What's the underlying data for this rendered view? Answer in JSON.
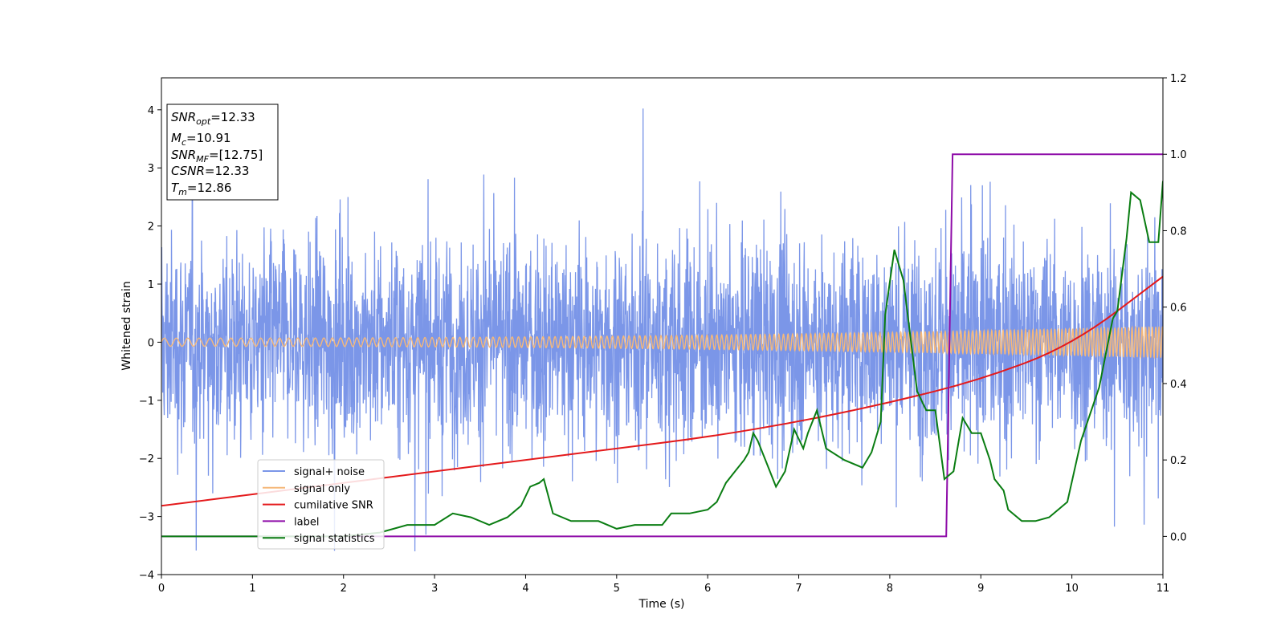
{
  "chart_data": {
    "type": "line",
    "xlabel": "Time (s)",
    "ylabel": "Whitened strain",
    "xlim": [
      0,
      11
    ],
    "ylim_left": [
      -4,
      4.55
    ],
    "ylim_right": [
      -0.1,
      1.2
    ],
    "x_ticks": [
      0,
      1,
      2,
      3,
      4,
      5,
      6,
      7,
      8,
      9,
      10,
      11
    ],
    "y_ticks_left": [
      -4,
      -3,
      -2,
      -1,
      0,
      1,
      2,
      3,
      4
    ],
    "y_ticks_right": [
      0.0,
      0.2,
      0.4,
      0.6,
      0.8,
      1.0,
      1.2
    ],
    "legend_position": "lower-left",
    "info_box": {
      "position": "top-left",
      "lines": [
        {
          "name": "SNR",
          "sub": "opt",
          "value": "=12.33"
        },
        {
          "name": "M",
          "sub": "c",
          "value": "=10.91"
        },
        {
          "name": "SNR",
          "sub": "MF",
          "value": "=[12.75]"
        },
        {
          "name": "CSNR",
          "sub": "",
          "value": "=12.33"
        },
        {
          "name": "T",
          "sub": "m",
          "value": "=12.86"
        }
      ]
    },
    "series": [
      {
        "name": "signal+ noise",
        "axis": "left",
        "color": "#7b96e8",
        "kind": "noise",
        "description_values": {
          "typical_range": [
            -2.0,
            2.2
          ],
          "max": 4.18,
          "min": -3.6
        }
      },
      {
        "name": "signal only",
        "axis": "left",
        "color": "#f5b87a",
        "kind": "chirp",
        "amplitude_start": 0.07,
        "amplitude_end": 0.27
      },
      {
        "name": "cumilative SNR",
        "axis": "right",
        "color": "#e41a1c",
        "x": [
          0,
          1,
          2,
          3,
          4,
          5,
          6,
          7,
          8,
          9,
          10,
          11
        ],
        "y": [
          0.08,
          0.11,
          0.14,
          0.17,
          0.2,
          0.23,
          0.26,
          0.3,
          0.35,
          0.41,
          0.5,
          0.68
        ]
      },
      {
        "name": "label",
        "axis": "right",
        "color": "#8e0ca8",
        "x": [
          0,
          8.62,
          8.69,
          11
        ],
        "y": [
          0,
          0,
          1,
          1
        ]
      },
      {
        "name": "signal statistics",
        "axis": "right",
        "color": "#0a7d12",
        "x": [
          0,
          0.5,
          1,
          1.5,
          2,
          2.4,
          2.7,
          2.9,
          3.0,
          3.2,
          3.4,
          3.6,
          3.8,
          3.95,
          4.05,
          4.15,
          4.2,
          4.3,
          4.5,
          4.8,
          5.0,
          5.2,
          5.5,
          5.6,
          5.8,
          6.0,
          6.1,
          6.2,
          6.3,
          6.4,
          6.45,
          6.5,
          6.55,
          6.65,
          6.75,
          6.85,
          6.95,
          7.05,
          7.1,
          7.2,
          7.3,
          7.5,
          7.7,
          7.8,
          7.9,
          7.95,
          8.05,
          8.15,
          8.3,
          8.4,
          8.45,
          8.5,
          8.6,
          8.7,
          8.8,
          8.9,
          9.0,
          9.1,
          9.15,
          9.25,
          9.3,
          9.45,
          9.6,
          9.75,
          9.85,
          9.95,
          10.1,
          10.2,
          10.3,
          10.45,
          10.5,
          10.6,
          10.65,
          10.75,
          10.85,
          10.95,
          11.0
        ],
        "y": [
          0.0,
          0.0,
          0.0,
          0.0,
          0.0,
          0.01,
          0.03,
          0.03,
          0.03,
          0.06,
          0.05,
          0.03,
          0.05,
          0.08,
          0.13,
          0.14,
          0.15,
          0.06,
          0.04,
          0.04,
          0.02,
          0.03,
          0.03,
          0.06,
          0.06,
          0.07,
          0.09,
          0.14,
          0.17,
          0.2,
          0.22,
          0.27,
          0.25,
          0.19,
          0.13,
          0.17,
          0.28,
          0.23,
          0.27,
          0.33,
          0.23,
          0.2,
          0.18,
          0.22,
          0.3,
          0.58,
          0.75,
          0.67,
          0.38,
          0.33,
          0.33,
          0.33,
          0.15,
          0.17,
          0.31,
          0.27,
          0.27,
          0.2,
          0.15,
          0.12,
          0.07,
          0.04,
          0.04,
          0.05,
          0.07,
          0.09,
          0.25,
          0.32,
          0.39,
          0.57,
          0.59,
          0.78,
          0.9,
          0.88,
          0.77,
          0.77,
          0.93
        ]
      }
    ]
  }
}
